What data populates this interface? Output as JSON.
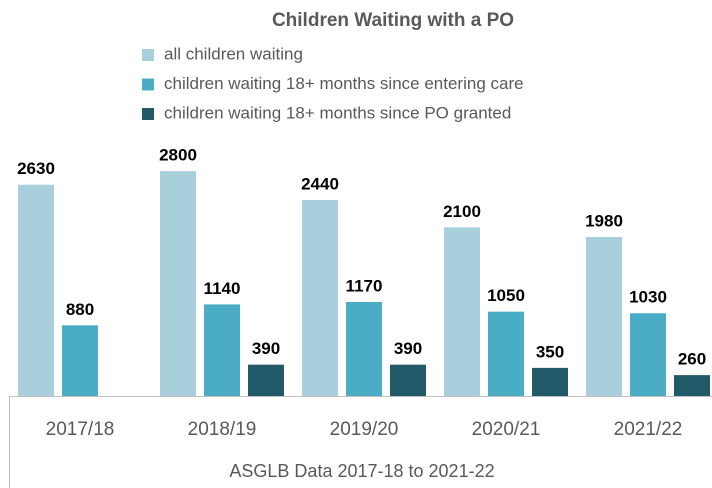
{
  "chart_data": {
    "type": "bar",
    "title": "Children Waiting with a PO",
    "categories": [
      "2017/18",
      "2018/19",
      "2019/20",
      "2020/21",
      "2021/22"
    ],
    "series": [
      {
        "name": "all children waiting",
        "color": "#a9cfdc",
        "values": [
          2630,
          2800,
          2440,
          2100,
          1980
        ]
      },
      {
        "name": "children waiting 18+ months since entering care",
        "color": "#4bacc6",
        "values": [
          880,
          1140,
          1170,
          1050,
          1030
        ]
      },
      {
        "name": "children waiting 18+ months since PO granted",
        "color": "#215968",
        "values": [
          null,
          390,
          390,
          350,
          260
        ]
      }
    ],
    "xlabel": "ASGLB Data 2017-18 to 2021-22",
    "ylim": [
      0,
      3000
    ]
  }
}
